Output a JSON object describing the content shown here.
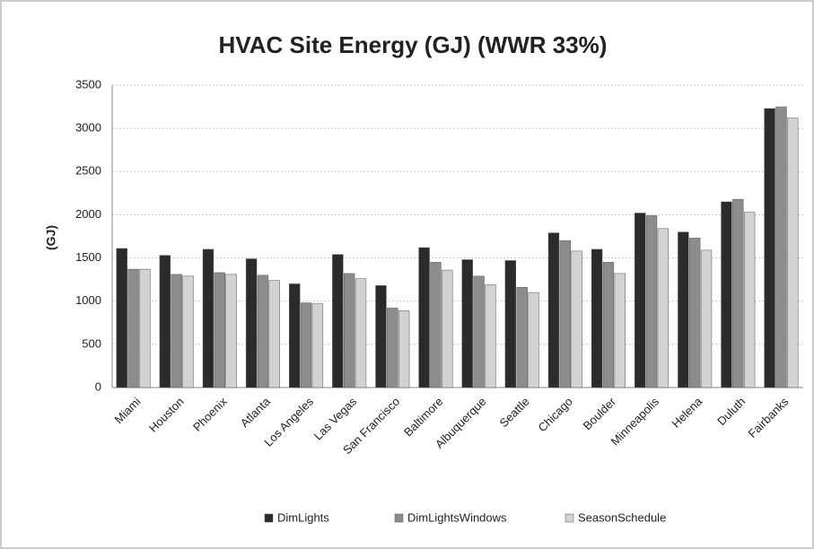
{
  "chart_data": {
    "type": "bar",
    "title": "HVAC Site Energy (GJ) (WWR 33%)",
    "y_label": "(GJ)",
    "categories": [
      "Miami",
      "Houston",
      "Phoenix",
      "Atlanta",
      "Los Angeles",
      "Las Vegas",
      "San Francisco",
      "Baltimore",
      "Albuquerque",
      "Seattle",
      "Chicago",
      "Boulder",
      "Minneapolis",
      "Helena",
      "Duluth",
      "Fairbanks"
    ],
    "series": [
      {
        "name": "DimLights",
        "color": "#2b2b2b",
        "values": [
          1610,
          1530,
          1600,
          1490,
          1200,
          1540,
          1180,
          1620,
          1480,
          1470,
          1790,
          1600,
          2020,
          1800,
          2150,
          3230
        ]
      },
      {
        "name": "DimLightsWindows",
        "color": "#8c8c8c",
        "values": [
          1370,
          1310,
          1330,
          1300,
          980,
          1320,
          920,
          1450,
          1290,
          1160,
          1700,
          1450,
          1990,
          1730,
          2180,
          3250
        ]
      },
      {
        "name": "SeasonSchedule",
        "color": "#d2d2d2",
        "values": [
          1370,
          1290,
          1310,
          1240,
          970,
          1260,
          890,
          1360,
          1190,
          1100,
          1580,
          1320,
          1840,
          1590,
          2030,
          3120
        ]
      }
    ],
    "ylim": [
      0,
      3500
    ],
    "yticks": [
      0,
      500,
      1000,
      1500,
      2000,
      2500,
      3000,
      3500
    ],
    "grid": true,
    "legend": "bottom"
  }
}
